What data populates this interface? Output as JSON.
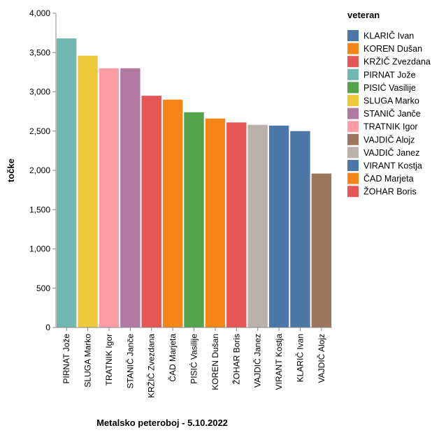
{
  "chart_data": {
    "type": "bar",
    "title": "",
    "xlabel": "Metalsko peteroboj - 5.10.2022",
    "ylabel": "točke",
    "ylim": [
      0,
      4000
    ],
    "yticks": [
      0,
      500,
      1000,
      1500,
      2000,
      2500,
      3000,
      3500,
      4000
    ],
    "ytick_labels": [
      "0",
      "500",
      "1,000",
      "1,500",
      "2,000",
      "2,500",
      "3,000",
      "3,500",
      "4,000"
    ],
    "grid": false,
    "legend_position": "right",
    "legend_title": "veteran",
    "categories": [
      "PIRNAT Jože",
      "SLUGA Marko",
      "TRATNIK Igor",
      "STANIČ Janče",
      "KRŽIČ Zvezdana",
      "ČAD Marjeta",
      "PISIĆ Vasilije",
      "KOREN Dušan",
      "ŽOHAR Boris",
      "VAJDIČ Janez",
      "VIRANT Kostja",
      "KLARIČ Ivan",
      "VAJDIČ Alojz"
    ],
    "values": [
      3680,
      3460,
      3300,
      3300,
      2950,
      2900,
      2740,
      2660,
      2610,
      2580,
      2570,
      2500,
      1960
    ],
    "legend": [
      {
        "name": "KLARIČ Ivan",
        "color": "#4c78a8"
      },
      {
        "name": "KOREN Dušan",
        "color": "#f58518"
      },
      {
        "name": "KRŽIČ Zvezdana",
        "color": "#e45756"
      },
      {
        "name": "PIRNAT Jože",
        "color": "#72b7b2"
      },
      {
        "name": "PISIĆ Vasilije",
        "color": "#54a24b"
      },
      {
        "name": "SLUGA Marko",
        "color": "#eeca3b"
      },
      {
        "name": "STANIČ Janče",
        "color": "#b279a2"
      },
      {
        "name": "TRATNIK Igor",
        "color": "#ff9da6"
      },
      {
        "name": "VAJDIČ Alojz",
        "color": "#9d755d"
      },
      {
        "name": "VAJDIČ Janez",
        "color": "#bab0ac"
      },
      {
        "name": "VIRANT Kostja",
        "color": "#4c78a8"
      },
      {
        "name": "ČAD Marjeta",
        "color": "#f58518"
      },
      {
        "name": "ŽOHAR Boris",
        "color": "#e45756"
      }
    ]
  }
}
